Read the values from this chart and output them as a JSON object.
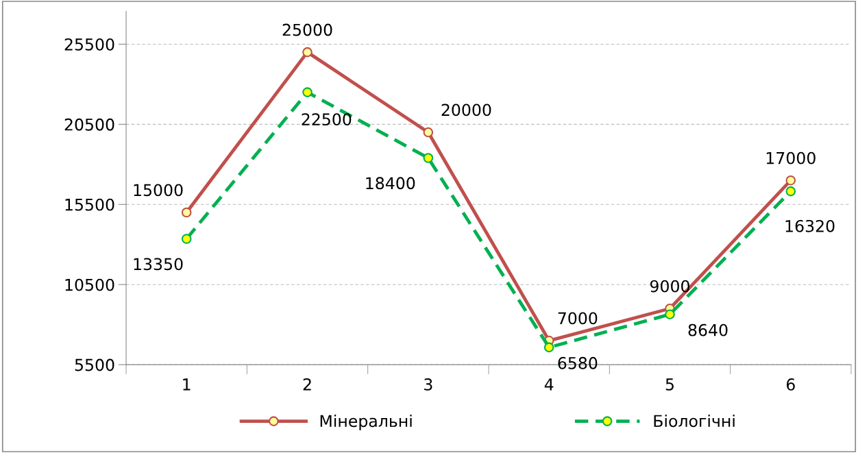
{
  "chart_data": {
    "type": "line",
    "categories": [
      "1",
      "2",
      "3",
      "4",
      "5",
      "6"
    ],
    "series": [
      {
        "name": "Мінеральні",
        "color": "#c0504d",
        "line_style": "solid",
        "values": [
          15000,
          25000,
          20000,
          7000,
          9000,
          17000
        ]
      },
      {
        "name": "Біологічні",
        "color": "#00b050",
        "line_style": "dashed",
        "values": [
          13350,
          22500,
          18400,
          6580,
          8640,
          16320
        ]
      }
    ],
    "ylim": [
      5500,
      27550
    ],
    "yticks": [
      5500,
      10500,
      15500,
      20500,
      25500
    ],
    "grid": "y",
    "legend": "bottom",
    "marker": "circle",
    "data_labels": true
  }
}
